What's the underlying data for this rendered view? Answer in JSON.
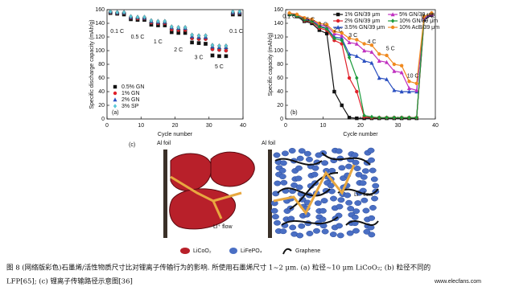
{
  "chart_data": [
    {
      "type": "scatter",
      "label": "(a)",
      "xlabel": "Cycle number",
      "ylabel": "Specific discharge capacity (mAh/g)",
      "x": [
        1,
        3,
        5,
        7,
        9,
        11,
        13,
        15,
        17,
        19,
        21,
        23,
        25,
        27,
        29,
        31,
        33,
        35,
        37,
        39
      ],
      "series": [
        {
          "name": "0.5% GN",
          "color": "#111111",
          "marker": "square",
          "values": [
            155,
            154,
            153,
            146,
            145,
            145,
            138,
            137,
            137,
            127,
            126,
            126,
            112,
            111,
            110,
            93,
            92,
            92,
            153,
            153
          ]
        },
        {
          "name": "1% GN",
          "color": "#e0202a",
          "marker": "circle",
          "values": [
            156,
            155,
            155,
            148,
            147,
            147,
            141,
            140,
            140,
            131,
            130,
            130,
            118,
            117,
            117,
            102,
            101,
            100,
            155,
            155
          ]
        },
        {
          "name": "2% GN",
          "color": "#2a4fc0",
          "marker": "triangle",
          "values": [
            157,
            156,
            156,
            149,
            149,
            148,
            143,
            142,
            142,
            134,
            133,
            133,
            121,
            120,
            120,
            106,
            105,
            105,
            156,
            156
          ]
        },
        {
          "name": "3% SP",
          "color": "#5cc8d8",
          "marker": "diamond",
          "values": [
            157,
            156,
            156,
            150,
            149,
            149,
            144,
            143,
            143,
            135,
            134,
            134,
            123,
            122,
            122,
            108,
            107,
            107,
            157,
            157
          ]
        }
      ],
      "xlim": [
        0,
        40
      ],
      "xticks": [
        0,
        10,
        20,
        30,
        40
      ],
      "ylim": [
        0,
        160
      ],
      "yticks": [
        0,
        20,
        40,
        60,
        80,
        100,
        120,
        140,
        160
      ],
      "legend": "lower left",
      "annotations": [
        "0.1 C",
        "0.5 C",
        "1 C",
        "2 C",
        "3 C",
        "5 C",
        "0.1 C"
      ]
    },
    {
      "type": "line",
      "label": "(b)",
      "xlabel": "Cycle number",
      "ylabel": "Specific capacity (mAh/g)",
      "x": [
        1,
        3,
        5,
        7,
        9,
        11,
        13,
        15,
        17,
        19,
        21,
        23,
        25,
        27,
        29,
        31,
        33,
        35,
        37,
        39
      ],
      "series": [
        {
          "name": "1% GN/39 μm",
          "color": "#111111",
          "marker": "square",
          "values": [
            153,
            150,
            143,
            140,
            130,
            125,
            40,
            20,
            2,
            1,
            1,
            1,
            1,
            1,
            1,
            1,
            1,
            1,
            145,
            152
          ]
        },
        {
          "name": "2% GN/39 μm",
          "color": "#e0202a",
          "marker": "circle",
          "values": [
            154,
            151,
            144,
            142,
            133,
            130,
            115,
            110,
            60,
            40,
            3,
            2,
            2,
            2,
            2,
            2,
            2,
            2,
            148,
            153
          ]
        },
        {
          "name": "3.5% GN/39 μm",
          "color": "#2a4fc0",
          "marker": "triangle",
          "values": [
            154,
            152,
            146,
            144,
            136,
            133,
            120,
            118,
            95,
            92,
            85,
            82,
            60,
            58,
            42,
            40,
            40,
            40,
            147,
            153
          ]
        },
        {
          "name": "5% GN/39 μm",
          "color": "#c030c0",
          "marker": "triangle",
          "values": [
            155,
            153,
            147,
            145,
            138,
            136,
            125,
            122,
            112,
            110,
            100,
            98,
            85,
            83,
            70,
            68,
            45,
            42,
            148,
            153
          ]
        },
        {
          "name": "10% GN/39 μm",
          "color": "#1a9a3a",
          "marker": "diamond",
          "values": [
            153,
            151,
            145,
            143,
            135,
            132,
            118,
            115,
            90,
            60,
            5,
            3,
            2,
            2,
            2,
            2,
            2,
            2,
            150,
            155
          ]
        },
        {
          "name": "10% AcB/39 μm",
          "color": "#f08a20",
          "marker": "circle",
          "values": [
            155,
            153,
            148,
            146,
            140,
            138,
            128,
            126,
            118,
            116,
            110,
            108,
            95,
            93,
            80,
            78,
            55,
            52,
            150,
            155
          ]
        }
      ],
      "xlim": [
        0,
        40
      ],
      "xticks": [
        0,
        10,
        20,
        30,
        40
      ],
      "ylim": [
        0,
        160
      ],
      "yticks": [
        0,
        20,
        40,
        60,
        80,
        100,
        120,
        140,
        160
      ],
      "legend": "upper center",
      "annotations": [
        "0.1 C",
        "0.5 C",
        "1 C",
        "2 C",
        "3 C",
        "4 C",
        "5 C",
        "10 C",
        "0.1 C"
      ]
    }
  ],
  "diagram": {
    "label": "(c)",
    "foil_labels": [
      "Al foil",
      "Al foil"
    ],
    "flow_labels": [
      "Li⁺ flow",
      "Li⁺ flow"
    ],
    "legend": [
      "LiCoO₂",
      "LiFePO₄",
      "Graphene"
    ]
  },
  "caption": {
    "lines": [
      "图 8  (网络版彩色)石墨烯/活性物质尺寸比对锂离子传输行为的影响. 所使用石墨烯尺寸 1~2 μm. (a) 粒径~10 μm LiCoO₂; (b) 粒径不同的",
      "LFP[65]; (c) 锂离子传输路径示意图[36]"
    ]
  },
  "watermark": "www.elecfans.com"
}
